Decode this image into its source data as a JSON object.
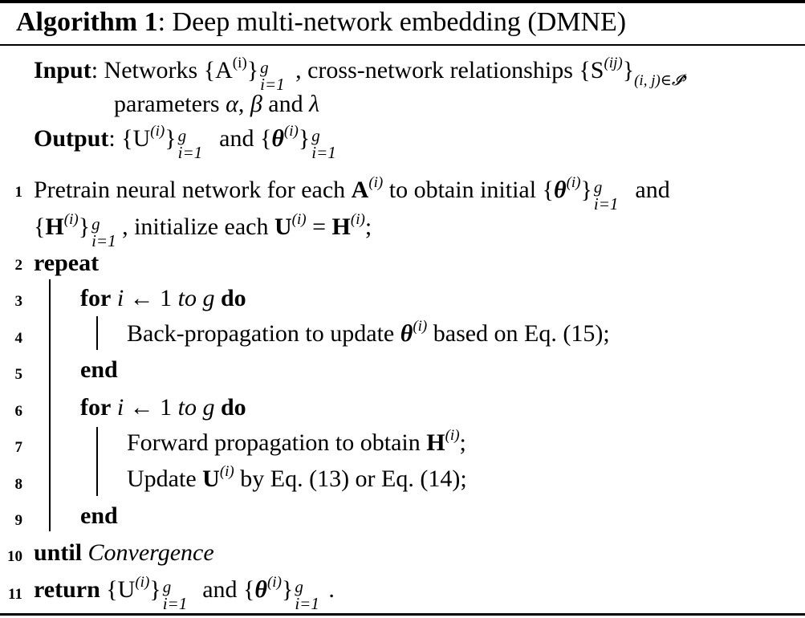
{
  "title": {
    "label": "Algorithm 1",
    "rest": ": Deep multi-network embedding (DMNE)"
  },
  "io": {
    "input_label": "Input",
    "input_l1_a": ": Networks {A",
    "input_l1_b": "}",
    "input_l1_c": ", cross-network relationships {S",
    "input_l1_d": "}",
    "input_l1_sub": "(i, j)∈𝓘",
    "input_l1_end": ",",
    "input_l2_a": "parameters ",
    "input_l2_alpha": "α",
    "input_l2_b": ", ",
    "input_l2_beta": "β",
    "input_l2_c": " and ",
    "input_l2_lambda": "λ",
    "output_label": "Output",
    "output_a": ": {U",
    "output_b": "}",
    "output_c": " and {",
    "output_theta": "θ",
    "output_d": "}"
  },
  "sym": {
    "i": "(i)",
    "ij": "(ij)",
    "g": "g",
    "i1": "i=1"
  },
  "lines": {
    "n1": "1",
    "n2": "2",
    "n3": "3",
    "n4": "4",
    "n5": "5",
    "n6": "6",
    "n7": "7",
    "n8": "8",
    "n9": "9",
    "n10": "10",
    "n11": "11",
    "l1a_1": "Pretrain neural network for each ",
    "l1a_A": "A",
    "l1a_2": " to obtain initial {",
    "l1a_theta": "θ",
    "l1a_3": "}",
    "l1a_4": " and",
    "l1b_1": "{",
    "l1b_H": "H",
    "l1b_2": "}",
    "l1b_3": ", initialize each ",
    "l1b_U": "U",
    "l1b_4": " = ",
    "l1b_H2": "H",
    "l1b_5": ";",
    "l2": "repeat",
    "for_kw": "for",
    "for_i": "i",
    "for_arrow": " ← 1 ",
    "for_to": "to g",
    "for_do": "do",
    "l4_1": "Back-propagation to update ",
    "l4_theta": "θ",
    "l4_2": " based on Eq. (15);",
    "end_kw": "end",
    "l7_1": "Forward propagation to obtain ",
    "l7_H": "H",
    "l7_2": ";",
    "l8_1": "Update ",
    "l8_U": "U",
    "l8_2": " by Eq. (13) or Eq. (14);",
    "until_kw": "until",
    "until_val": "Convergence",
    "return_kw": "return",
    "ret_1": " {U",
    "ret_2": "}",
    "ret_3": " and {",
    "ret_theta": "θ",
    "ret_4": "}",
    "ret_5": "."
  }
}
